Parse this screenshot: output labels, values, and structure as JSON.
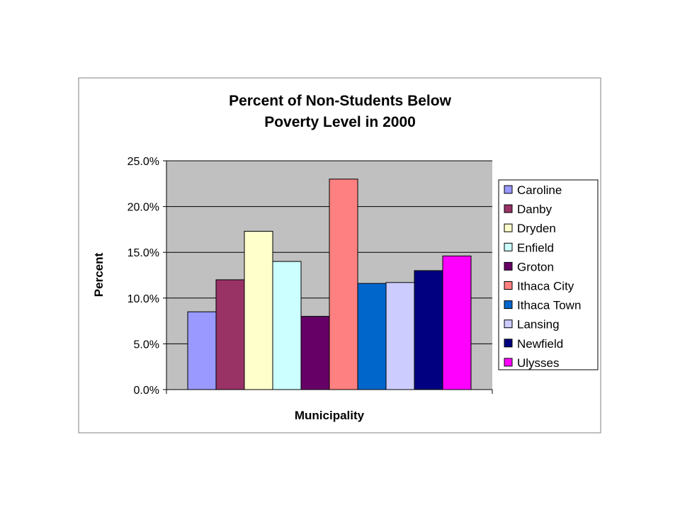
{
  "chart_data": {
    "type": "bar",
    "title_lines": [
      "Percent of Non-Students Below",
      "Poverty Level in 2000"
    ],
    "xlabel": "Municipality",
    "ylabel": "Percent",
    "ylim": [
      0,
      25
    ],
    "yticks": [
      "0.0%",
      "5.0%",
      "10.0%",
      "15.0%",
      "20.0%",
      "25.0%"
    ],
    "grid": true,
    "legend_position": "right",
    "series": [
      {
        "name": "Caroline",
        "value": 8.5,
        "color": "#9999ff"
      },
      {
        "name": "Danby",
        "value": 12.0,
        "color": "#993366"
      },
      {
        "name": "Dryden",
        "value": 17.3,
        "color": "#ffffcc"
      },
      {
        "name": "Enfield",
        "value": 14.0,
        "color": "#ccffff"
      },
      {
        "name": "Groton",
        "value": 8.0,
        "color": "#660066"
      },
      {
        "name": "Ithaca City",
        "value": 23.0,
        "color": "#ff8080"
      },
      {
        "name": "Ithaca Town",
        "value": 11.6,
        "color": "#0066cc"
      },
      {
        "name": "Lansing",
        "value": 11.7,
        "color": "#ccccff"
      },
      {
        "name": "Newfield",
        "value": 13.0,
        "color": "#000080"
      },
      {
        "name": "Ulysses",
        "value": 14.6,
        "color": "#ff00ff"
      }
    ],
    "colors": {
      "plot_background": "#c0c0c0",
      "frame_border": "#808080"
    }
  }
}
